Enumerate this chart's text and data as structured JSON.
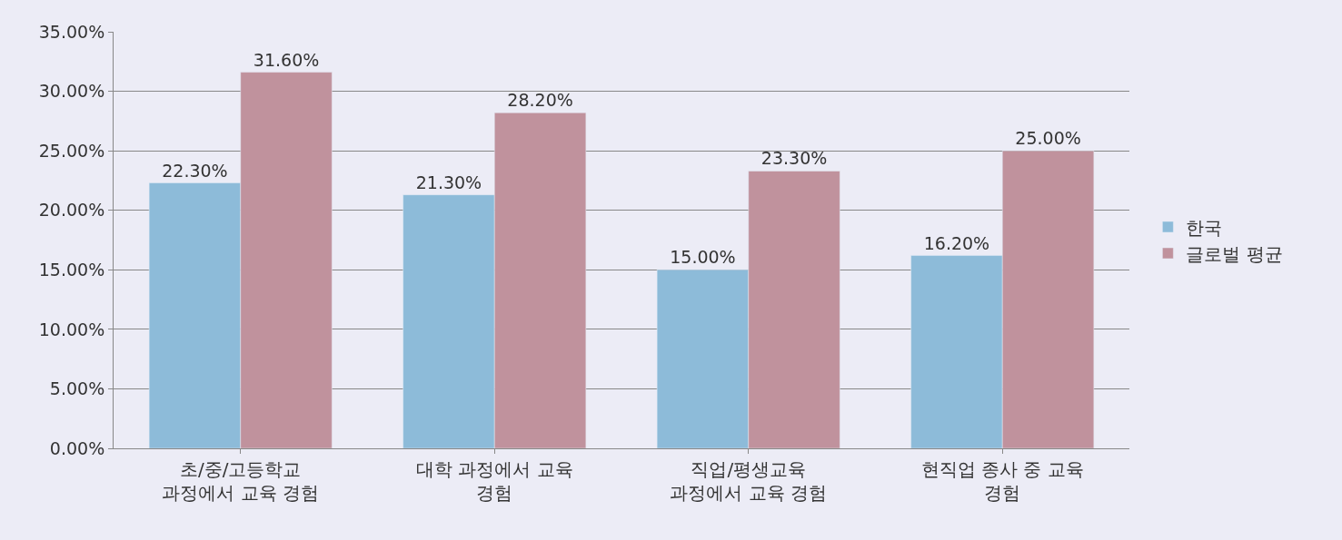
{
  "chart_data": {
    "type": "bar",
    "categories": [
      "초/중/고등학교\n과정에서 교육 경험",
      "대학 과정에서 교육\n경험",
      "직업/평생교육\n과정에서 교육 경험",
      "현직업 종사 중 교육\n경험"
    ],
    "series": [
      {
        "name": "한국",
        "color": "#8dbbd9",
        "values": [
          22.3,
          21.3,
          15.0,
          16.2
        ],
        "value_labels": [
          "22.30%",
          "21.30%",
          "15.00%",
          "16.20%"
        ]
      },
      {
        "name": "글로벌 평균",
        "color": "#c0929d",
        "values": [
          31.6,
          28.2,
          23.3,
          25.0
        ],
        "value_labels": [
          "31.60%",
          "28.20%",
          "23.30%",
          "25.00%"
        ]
      }
    ],
    "ylim": [
      0,
      35
    ],
    "yticks": [
      {
        "value": 0,
        "label": "0.00%"
      },
      {
        "value": 5,
        "label": "5.00%"
      },
      {
        "value": 10,
        "label": "10.00%"
      },
      {
        "value": 15,
        "label": "15.00%"
      },
      {
        "value": 20,
        "label": "20.00%"
      },
      {
        "value": 25,
        "label": "25.00%"
      },
      {
        "value": 30,
        "label": "30.00%"
      },
      {
        "value": 35,
        "label": "35.00%"
      }
    ],
    "grid": "y",
    "legend": "right"
  }
}
